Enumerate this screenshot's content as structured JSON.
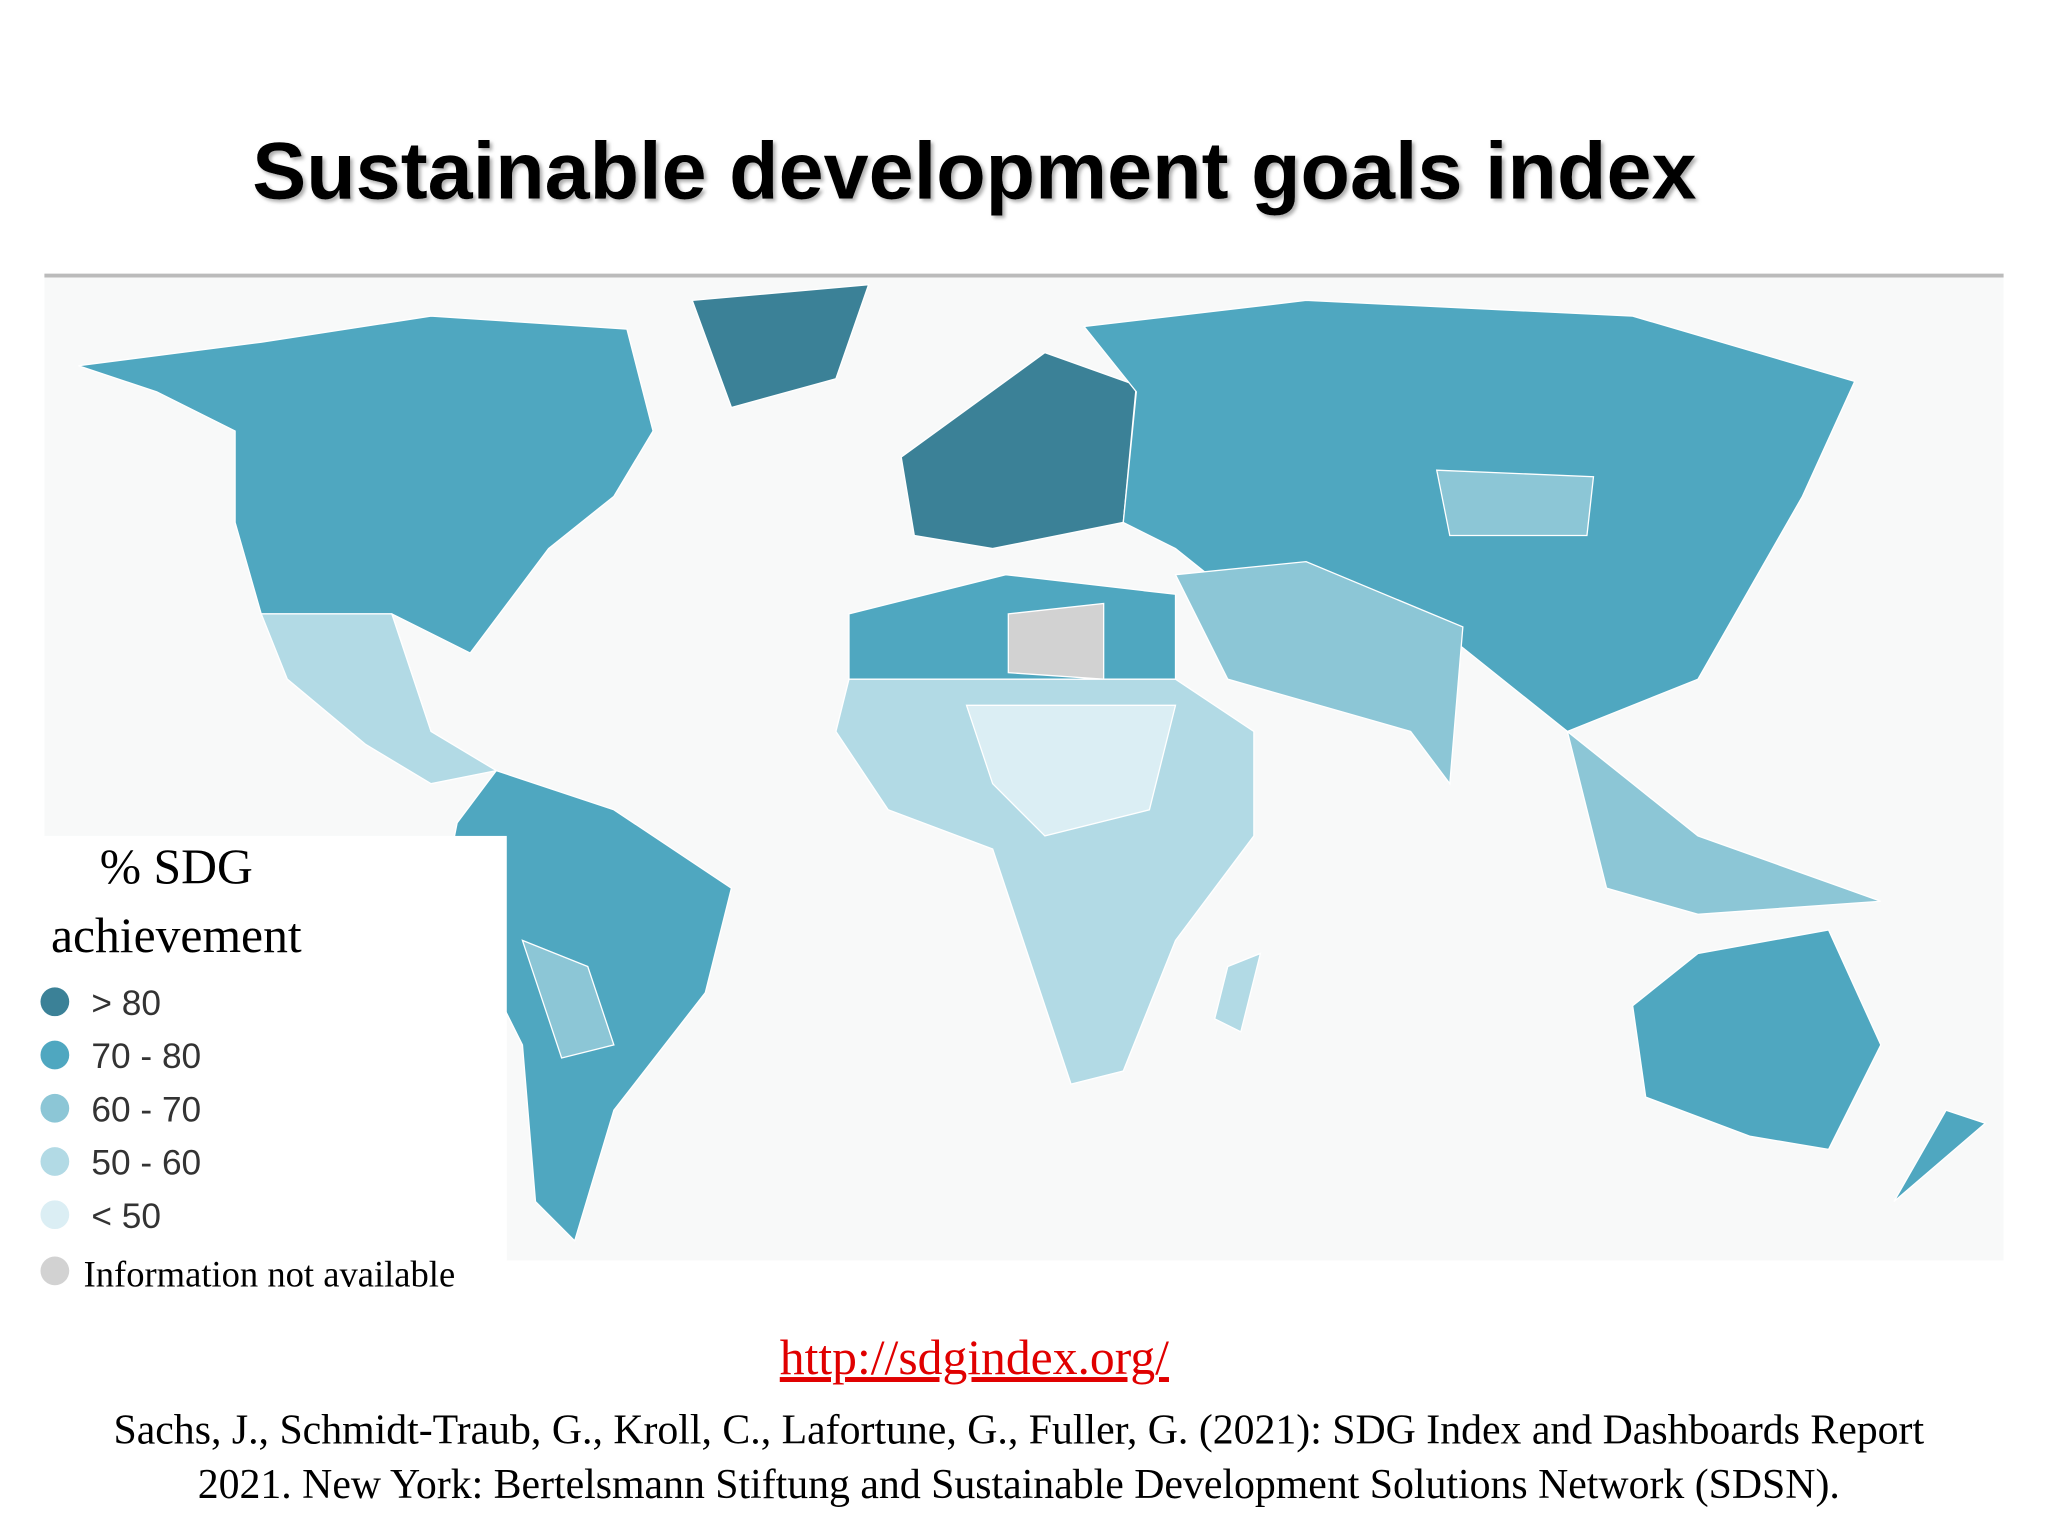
{
  "header": {
    "title": "Sustainable development goals index"
  },
  "legend": {
    "title": [
      "% SDG",
      "achievement"
    ],
    "items": [
      {
        "label": "> 80",
        "color": "#3b8197"
      },
      {
        "label": "70 - 80",
        "color": "#4fa7c0"
      },
      {
        "label": "60 - 70",
        "color": "#8cc6d6"
      },
      {
        "label": "50 - 60",
        "color": "#b2dae5"
      },
      {
        "label": "< 50",
        "color": "#dbeef4"
      }
    ],
    "na": {
      "label": "Information not available",
      "color": "#d2d2d2"
    }
  },
  "link": "http://sdgindex.org/",
  "citation": [
    "Sachs, J., Schmidt-Traub, G., Kroll, C., Lafortune, G., Fuller, G. (2021): SDG Index and Dashboards Report",
    "2021. New York: Bertelsmann Stiftung and Sustainable Development Solutions Network (SDSN)."
  ]
}
